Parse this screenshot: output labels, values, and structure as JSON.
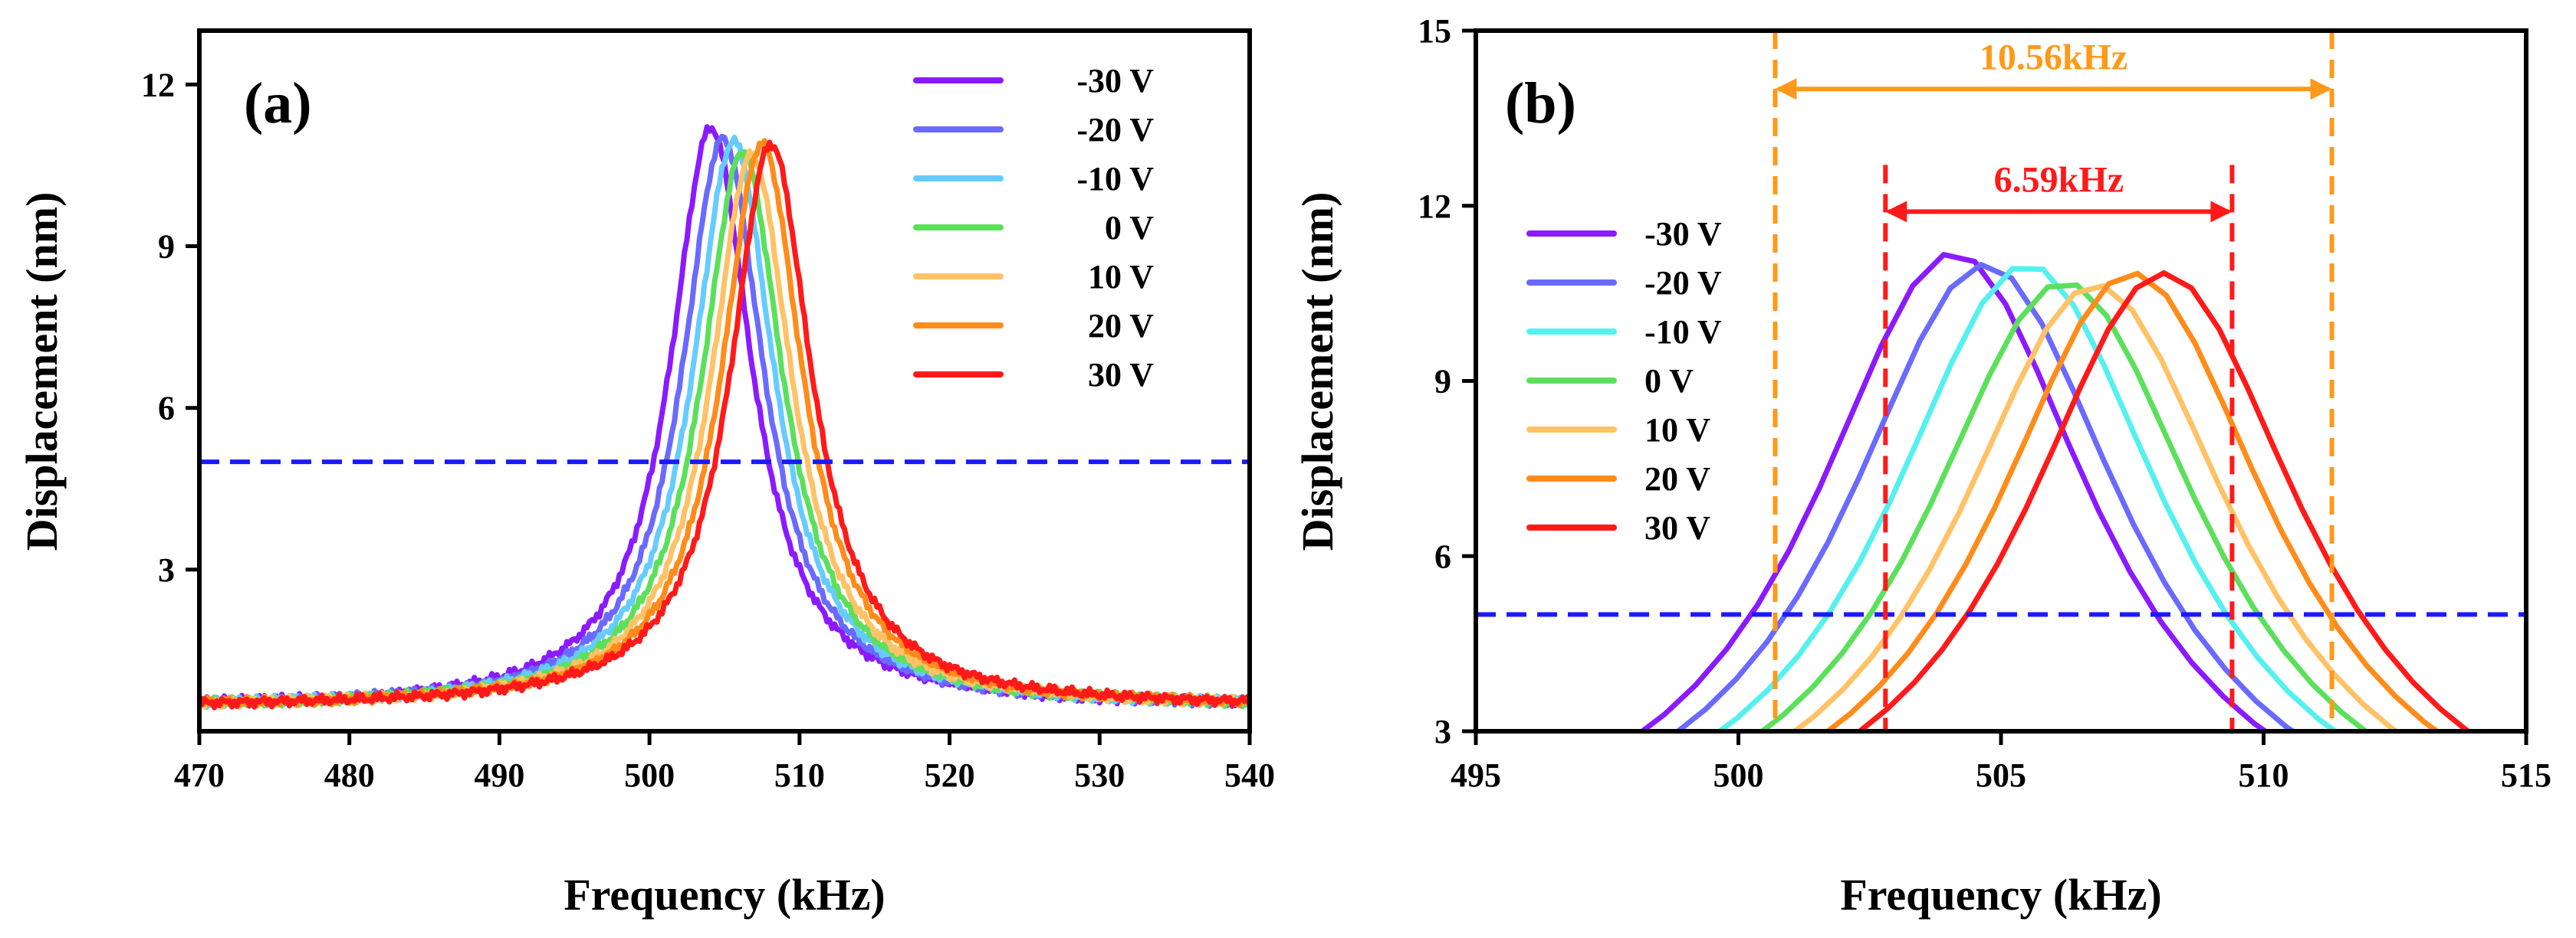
{
  "chart_data": [
    {
      "type": "line",
      "panel": "(a)",
      "xlabel": "Frequency (kHz)",
      "ylabel": "Displacement (nm)",
      "xlim": [
        470,
        540
      ],
      "ylim": [
        0,
        13
      ],
      "xticks": [
        470,
        480,
        490,
        500,
        510,
        520,
        530,
        540
      ],
      "yticks": [
        3,
        6,
        9,
        12
      ],
      "legend_position": "top-right",
      "reference_line": {
        "y": 5,
        "color": "#1a1aff",
        "style": "dashed"
      },
      "model": "lorentzian",
      "series": [
        {
          "name": "-30 V",
          "color": "#8b1aff",
          "peak_freq_khz": 504.1,
          "peak_nm": 11.2,
          "half_width_khz": 3.3,
          "baseline_nm": 0.45
        },
        {
          "name": "-20 V",
          "color": "#6a6aff",
          "peak_freq_khz": 504.9,
          "peak_nm": 11.0,
          "half_width_khz": 3.3,
          "baseline_nm": 0.45
        },
        {
          "name": "-10 V",
          "color": "#66ccff",
          "peak_freq_khz": 505.6,
          "peak_nm": 10.95,
          "half_width_khz": 3.3,
          "baseline_nm": 0.45
        },
        {
          "name": "0 V",
          "color": "#5ce05c",
          "peak_freq_khz": 506.2,
          "peak_nm": 10.75,
          "half_width_khz": 3.3,
          "baseline_nm": 0.45
        },
        {
          "name": "10 V",
          "color": "#ffc266",
          "peak_freq_khz": 506.8,
          "peak_nm": 10.7,
          "half_width_khz": 3.3,
          "baseline_nm": 0.45
        },
        {
          "name": "20 V",
          "color": "#ff8c1a",
          "peak_freq_khz": 507.5,
          "peak_nm": 10.9,
          "half_width_khz": 3.3,
          "baseline_nm": 0.45
        },
        {
          "name": "30 V",
          "color": "#ff1a1a",
          "peak_freq_khz": 508.1,
          "peak_nm": 10.9,
          "half_width_khz": 3.3,
          "baseline_nm": 0.45
        }
      ]
    },
    {
      "type": "line",
      "panel": "(b)",
      "xlabel": "Frequency (kHz)",
      "ylabel": "Displacement (nm)",
      "xlim": [
        495,
        515
      ],
      "ylim": [
        3,
        15
      ],
      "xticks": [
        495,
        500,
        505,
        510,
        515
      ],
      "yticks": [
        3,
        6,
        9,
        12,
        15
      ],
      "legend_position": "left",
      "reference_line": {
        "y": 5,
        "color": "#1a1aff",
        "style": "dashed"
      },
      "model": "lorentzian",
      "series": [
        {
          "name": "-30 V",
          "color": "#8b1aff",
          "peak_freq_khz": 504.1,
          "peak_nm": 11.2,
          "half_width_khz": 3.3,
          "baseline_nm": 0.45,
          "x_range": [
            498.0,
            511.0
          ]
        },
        {
          "name": "-20 V",
          "color": "#6a6aff",
          "peak_freq_khz": 504.7,
          "peak_nm": 11.0,
          "half_width_khz": 3.3,
          "baseline_nm": 0.45,
          "x_range": [
            498.8,
            511.6
          ]
        },
        {
          "name": "-10 V",
          "color": "#55f0f0",
          "peak_freq_khz": 505.5,
          "peak_nm": 11.0,
          "half_width_khz": 3.3,
          "baseline_nm": 0.45,
          "x_range": [
            499.4,
            512.2
          ]
        },
        {
          "name": "0 V",
          "color": "#5ce05c",
          "peak_freq_khz": 506.2,
          "peak_nm": 10.7,
          "half_width_khz": 3.3,
          "baseline_nm": 0.45,
          "x_range": [
            500.3,
            512.6
          ]
        },
        {
          "name": "10 V",
          "color": "#ffc266",
          "peak_freq_khz": 506.8,
          "peak_nm": 10.65,
          "half_width_khz": 3.3,
          "baseline_nm": 0.45,
          "x_range": [
            500.9,
            513.0
          ]
        },
        {
          "name": "20 V",
          "color": "#ff8c1a",
          "peak_freq_khz": 507.5,
          "peak_nm": 10.85,
          "half_width_khz": 3.3,
          "baseline_nm": 0.45,
          "x_range": [
            501.6,
            513.6
          ]
        },
        {
          "name": "30 V",
          "color": "#ff1a1a",
          "peak_freq_khz": 508.1,
          "peak_nm": 10.85,
          "half_width_khz": 3.3,
          "baseline_nm": 0.45,
          "x_range": [
            502.3,
            513.9
          ]
        }
      ],
      "markers": [
        {
          "name": "outer-left",
          "x": 500.7,
          "color": "#ff9919"
        },
        {
          "name": "outer-right",
          "x": 511.3,
          "color": "#ff9919"
        },
        {
          "name": "inner-left",
          "x": 502.8,
          "color": "#ff1a1a"
        },
        {
          "name": "inner-right",
          "x": 509.4,
          "color": "#ff1a1a"
        }
      ],
      "annotations": [
        {
          "label": "10.56kHz",
          "from": 500.7,
          "to": 511.3,
          "y": 14.0,
          "color": "#ff9919"
        },
        {
          "label": "6.59kHz",
          "from": 502.8,
          "to": 509.4,
          "y": 11.9,
          "color": "#ff1a1a"
        }
      ]
    }
  ]
}
